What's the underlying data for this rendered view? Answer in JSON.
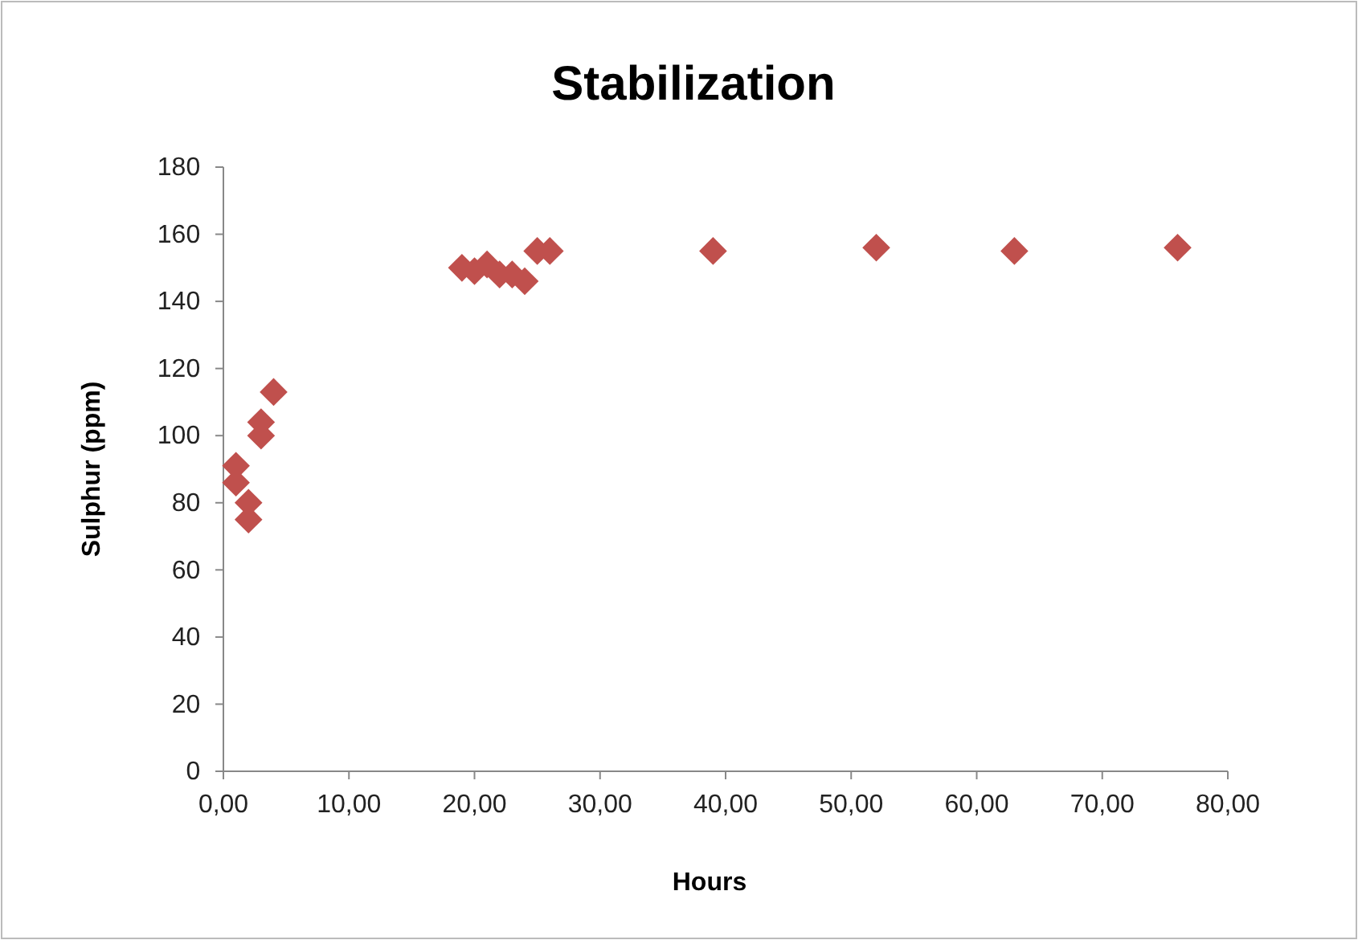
{
  "chart_data": {
    "type": "scatter",
    "title": "Stabilization",
    "xlabel": "Hours",
    "ylabel": "Sulphur (ppm)",
    "x": [
      1,
      1,
      2,
      2,
      3,
      3,
      4,
      19,
      20,
      21,
      22,
      23,
      24,
      25,
      26,
      39,
      52,
      63,
      76
    ],
    "series": [
      {
        "color": "#c0504d",
        "values": [
          91,
          86,
          80,
          75,
          100,
          104,
          113,
          150,
          149,
          151,
          148,
          148,
          146,
          155,
          155,
          155,
          156,
          155,
          156
        ]
      }
    ],
    "xlim": [
      0,
      80
    ],
    "xticks": [
      {
        "value": 0,
        "label": "0,00"
      },
      {
        "value": 10,
        "label": "10,00"
      },
      {
        "value": 20,
        "label": "20,00"
      },
      {
        "value": 30,
        "label": "30,00"
      },
      {
        "value": 40,
        "label": "40,00"
      },
      {
        "value": 50,
        "label": "50,00"
      },
      {
        "value": 60,
        "label": "60,00"
      },
      {
        "value": 70,
        "label": "70,00"
      },
      {
        "value": 80,
        "label": "80,00"
      }
    ],
    "ylim": [
      0,
      180
    ],
    "yticks": [
      0,
      20,
      40,
      60,
      80,
      100,
      120,
      140,
      160,
      180
    ],
    "marker": "diamond",
    "grid": false,
    "legend": false
  }
}
